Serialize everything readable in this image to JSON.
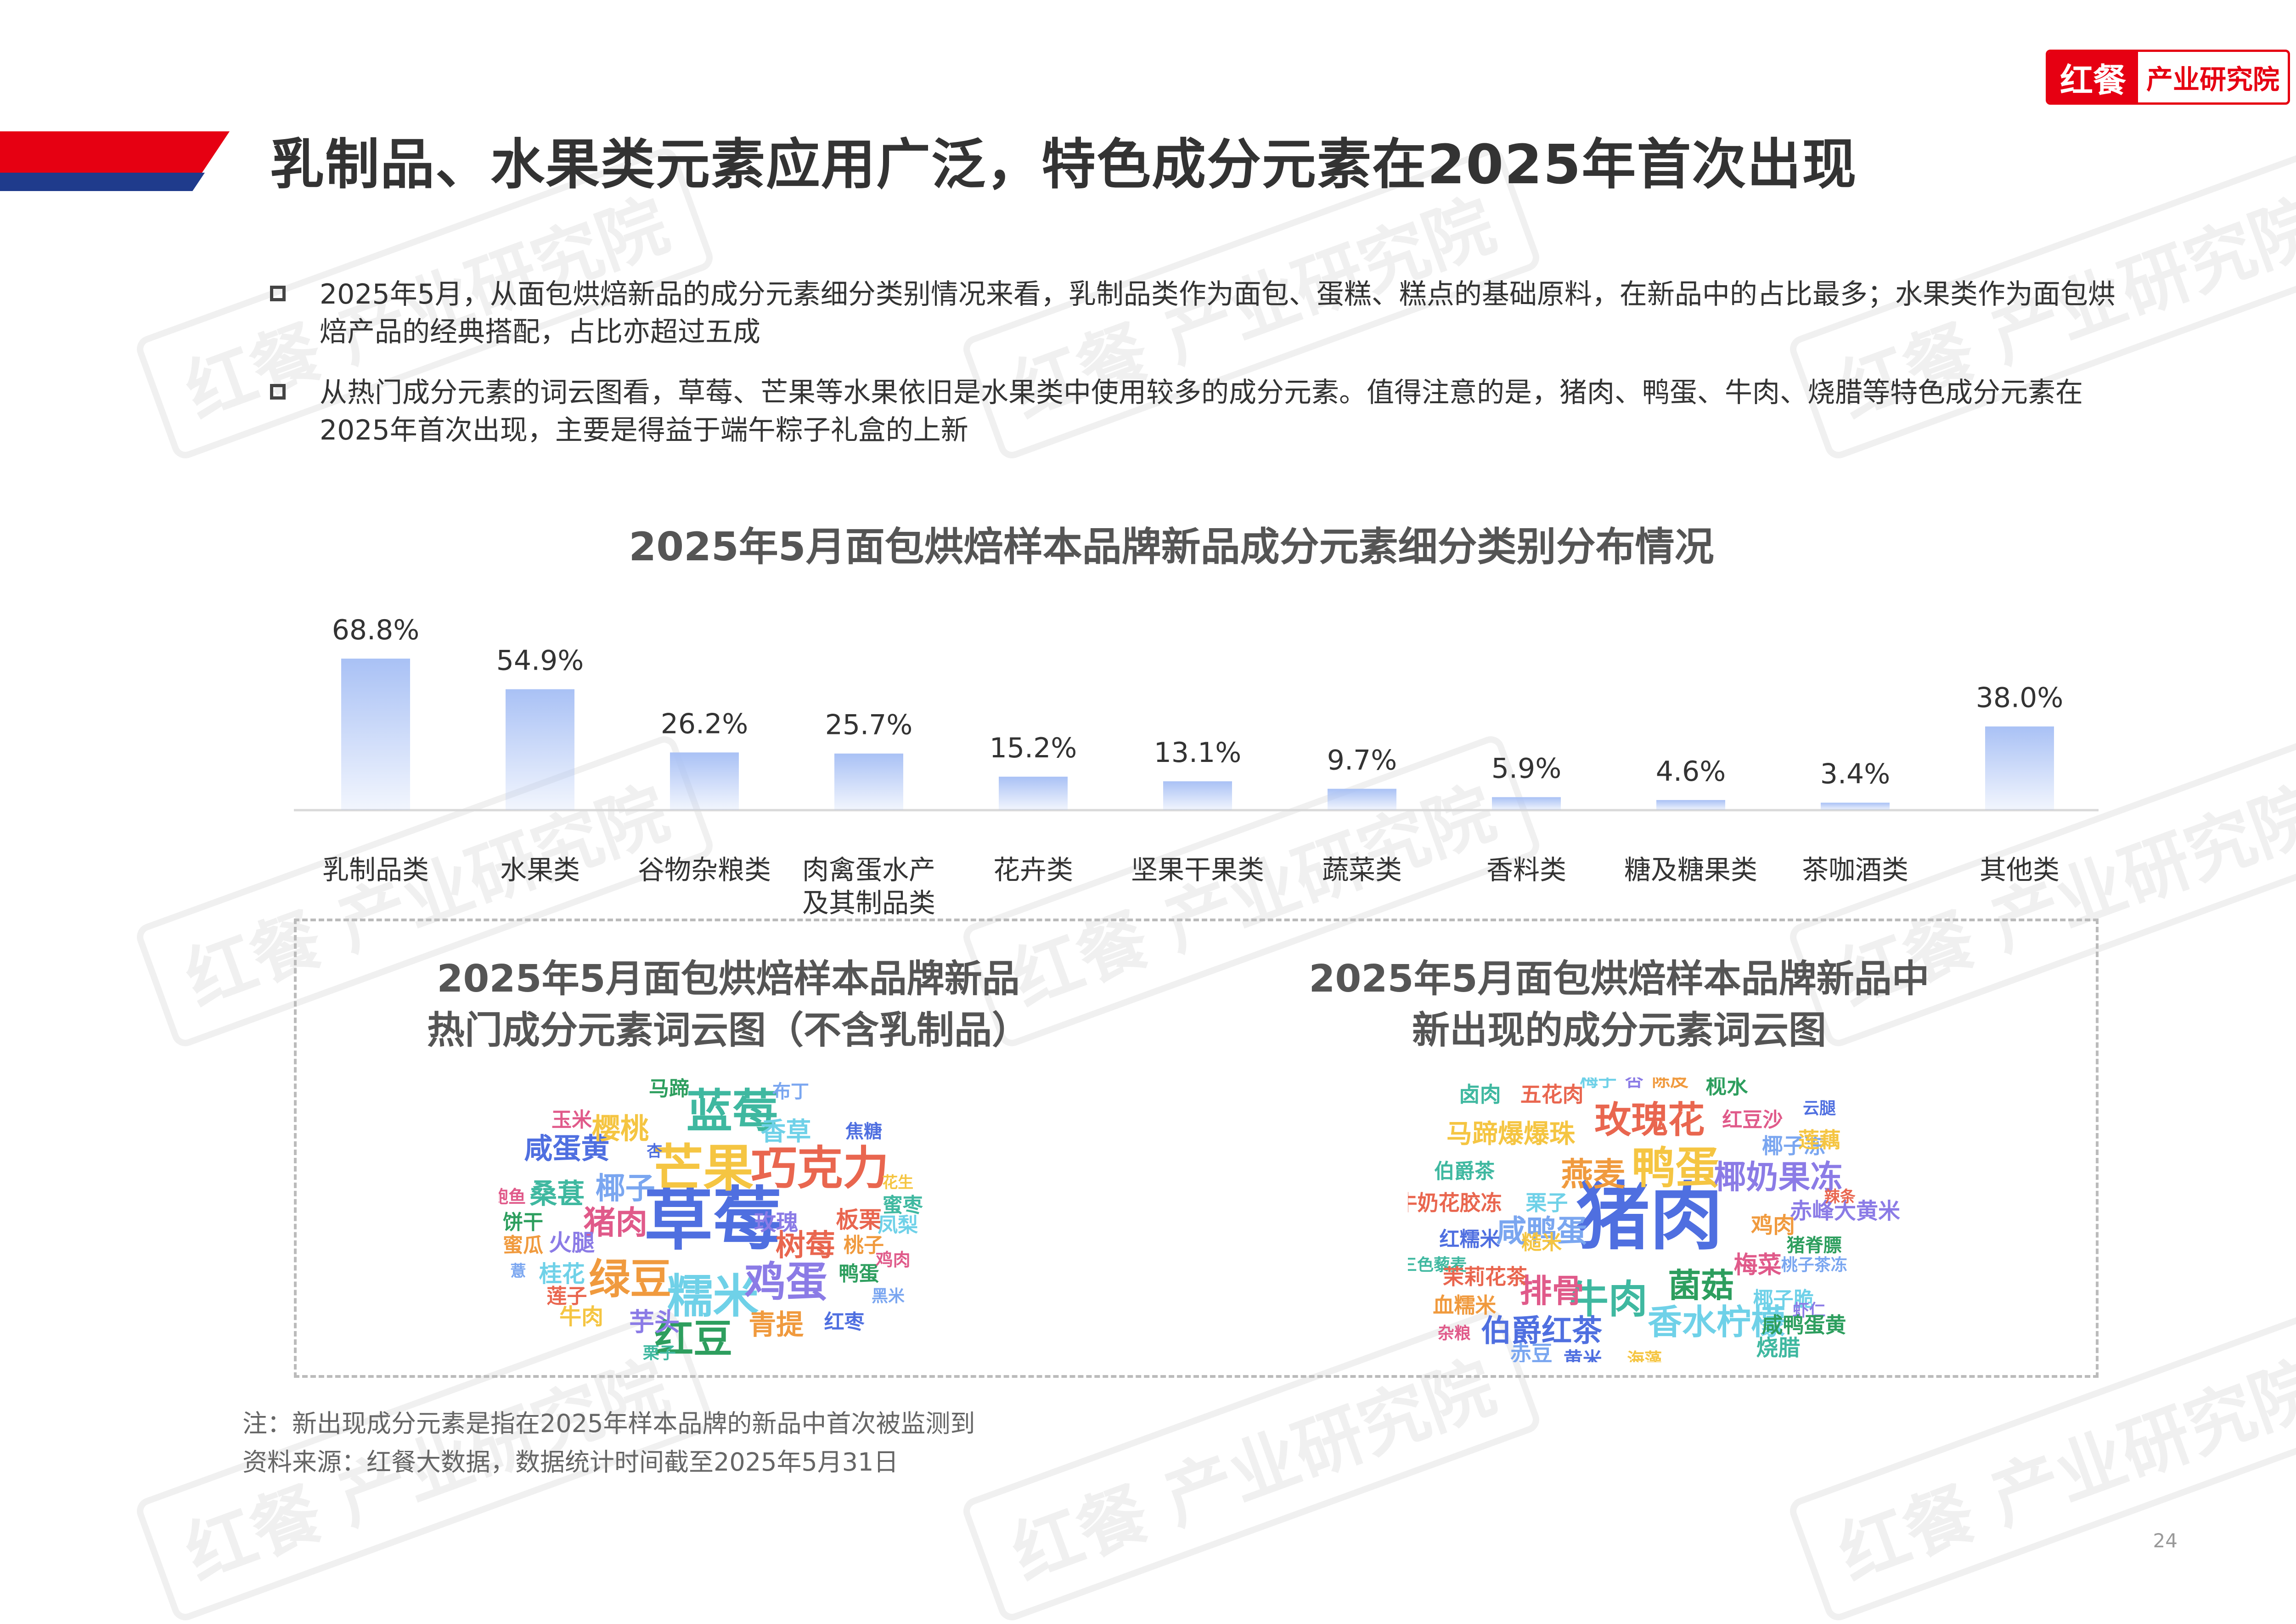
{
  "brand": {
    "logo": "红餐",
    "text": "产业研究院"
  },
  "title": "乳制品、水果类元素应用广泛，特色成分元素在2025年首次出现",
  "bullets": [
    "2025年5月，从面包烘焙新品的成分元素细分类别情况来看，乳制品类作为面包、蛋糕、糕点的基础原料，在新品中的占比最多；水果类作为面包烘焙产品的经典搭配，占比亦超过五成",
    "从热门成分元素的词云图看，草莓、芒果等水果依旧是水果类中使用较多的成分元素。值得注意的是，猪肉、鸭蛋、牛肉、烧腊等特色成分元素在2025年首次出现，主要是得益于端午粽子礼盒的上新"
  ],
  "chart_data": {
    "type": "bar",
    "title": "2025年5月面包烘焙样本品牌新品成分元素细分类别分布情况",
    "categories": [
      "乳制品类",
      "水果类",
      "谷物杂粮类",
      "肉禽蛋水产及其制品类",
      "花卉类",
      "坚果干果类",
      "蔬菜类",
      "香料类",
      "糖及糖果类",
      "茶咖酒类",
      "其他类"
    ],
    "category_lines": [
      [
        "乳制品类"
      ],
      [
        "水果类"
      ],
      [
        "谷物杂粮类"
      ],
      [
        "肉禽蛋水产",
        "及其制品类"
      ],
      [
        "花卉类"
      ],
      [
        "坚果干果类"
      ],
      [
        "蔬菜类"
      ],
      [
        "香料类"
      ],
      [
        "糖及糖果类"
      ],
      [
        "茶咖酒类"
      ],
      [
        "其他类"
      ]
    ],
    "values": [
      68.8,
      54.9,
      26.2,
      25.7,
      15.2,
      13.1,
      9.7,
      5.9,
      4.6,
      3.4,
      38.0
    ],
    "value_labels": [
      "68.8%",
      "54.9%",
      "26.2%",
      "25.7%",
      "15.2%",
      "13.1%",
      "9.7%",
      "5.9%",
      "4.6%",
      "3.4%",
      "38.0%"
    ],
    "bar_color": "#a9c1f5",
    "grid": false
  },
  "cloud_left": {
    "title_lines": [
      "2025年5月面包烘焙样本品牌新品",
      "热门成分元素词云图（不含乳制品）"
    ],
    "words": [
      "草莓",
      "芒果",
      "蓝莓",
      "巧克力",
      "糯米",
      "鸡蛋",
      "绿豆",
      "红豆",
      "猪肉",
      "椰子",
      "咸蛋黄",
      "樱桃",
      "桑葚",
      "树莓",
      "香草",
      "芋头",
      "青提",
      "马蹄",
      "玉米",
      "布丁",
      "焦糖",
      "花生",
      "蜜枣",
      "板栗",
      "凤梨",
      "玫瑰",
      "桃子",
      "鸭蛋",
      "鸡肉",
      "黑米",
      "红枣",
      "牛肉",
      "栗子",
      "莲子",
      "桂花",
      "火腿",
      "蜜瓜",
      "饼干",
      "鲍鱼",
      "薏",
      "杏"
    ]
  },
  "cloud_right": {
    "title_lines": [
      "2025年5月面包烘焙样本品牌新品中",
      "新出现的成分元素词云图"
    ],
    "words": [
      "猪肉",
      "鸭蛋",
      "牛肉",
      "玫瑰花",
      "香水柠檬",
      "椰奶果冻",
      "燕麦",
      "菌菇",
      "排骨",
      "咸鸭蛋",
      "伯爵红茶",
      "马蹄爆爆珠",
      "卤肉",
      "五花肉",
      "梅子",
      "杏",
      "陈皮",
      "枧水",
      "红豆沙",
      "椰子冻",
      "云腿",
      "莲藕",
      "伯爵茶",
      "牛奶花胶冻",
      "栗子",
      "赤峰大黄米",
      "鸡肉",
      "猪脊膘",
      "梅菜",
      "桃子茶冻",
      "红糯米",
      "糙米",
      "三色藜麦",
      "茉莉花茶",
      "椰子脆",
      "虾仁",
      "血糯米",
      "咸鸭蛋黄",
      "杂粮",
      "赤豆",
      "黄米",
      "海藻",
      "烧腊",
      "辣条"
    ]
  },
  "notes": [
    "注：新出现成分元素是指在2025年样本品牌的新品中首次被监测到",
    "资料来源：红餐大数据，数据统计时间截至2025年5月31日"
  ],
  "page_number": "24",
  "watermark": "红餐 产业研究院"
}
